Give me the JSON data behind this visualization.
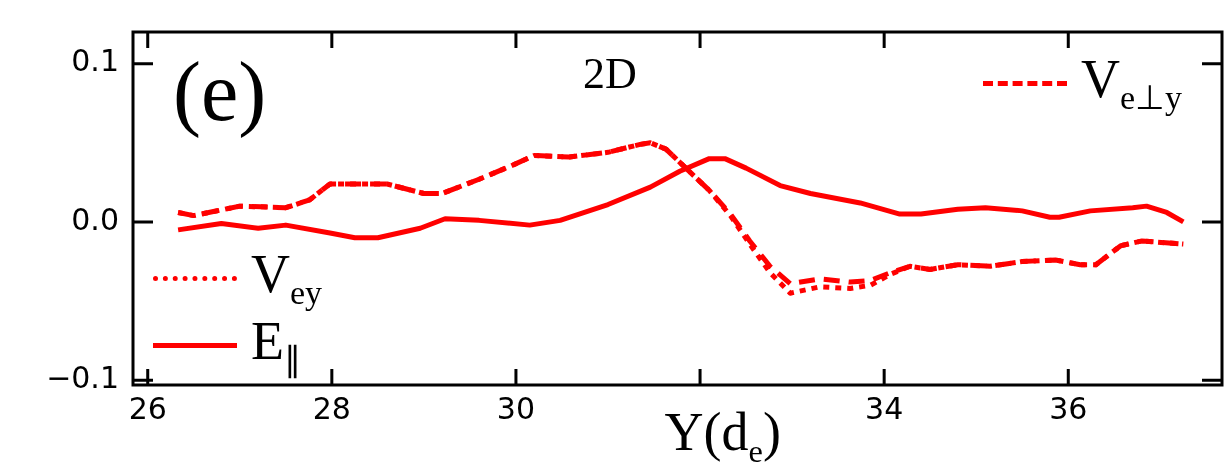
{
  "chart_data": {
    "type": "line",
    "xlabel": "Y(d$_{e}$)",
    "annotations": [
      "(e)",
      "2D"
    ],
    "xlim": [
      25.84,
      37.67
    ],
    "xticks": [
      26,
      28,
      30,
      {
        "value": 32,
        "label": null
      },
      34,
      36
    ],
    "ylim": [
      -0.103,
      0.12
    ],
    "yticks": [
      0.1,
      {
        "value": 0,
        "label": "0.0"
      },
      -0.1
    ],
    "legend": "bottom left",
    "marker": "none",
    "grid": false,
    "series": [
      {
        "name": "V$_{e⊥y}$",
        "color": "#ff0000",
        "line_style": "dashed",
        "x": [
          26.33,
          26.5,
          27.0,
          27.5,
          27.76,
          27.98,
          28.3,
          28.6,
          29.0,
          29.2,
          29.6,
          29.93,
          30.2,
          30.58,
          31.0,
          31.35,
          31.46,
          31.63,
          31.9,
          32.1,
          32.33,
          32.54,
          32.76,
          32.98,
          33.3,
          33.63,
          33.85,
          34.07,
          34.28,
          34.5,
          34.8,
          35.15,
          35.5,
          35.86,
          36.13,
          36.3,
          36.57,
          36.8,
          37.25
        ],
        "values": [
          0.006,
          0.004,
          0.01,
          0.009,
          0.014,
          0.024,
          0.024,
          0.024,
          0.018,
          0.018,
          0.027,
          0.035,
          0.042,
          0.041,
          0.044,
          0.049,
          0.05,
          0.046,
          0.031,
          0.02,
          0.005,
          -0.012,
          -0.028,
          -0.039,
          -0.036,
          -0.038,
          -0.037,
          -0.032,
          -0.028,
          -0.03,
          -0.027,
          -0.028,
          -0.025,
          -0.024,
          -0.027,
          -0.027,
          -0.015,
          -0.012,
          -0.014
        ]
      },
      {
        "name": "V$_{ey}$",
        "color": "#ff0000",
        "line_style": "dotted",
        "x": [
          26.33,
          26.5,
          27.0,
          27.5,
          27.76,
          27.98,
          28.3,
          28.6,
          29.0,
          29.2,
          29.6,
          29.93,
          30.2,
          30.58,
          31.0,
          31.35,
          31.46,
          31.63,
          31.9,
          32.1,
          32.33,
          32.54,
          32.76,
          32.98,
          33.3,
          33.63,
          33.85,
          34.07,
          34.28,
          34.5,
          34.8,
          35.15,
          35.5,
          35.86,
          36.13,
          36.3,
          36.57,
          36.8,
          37.25
        ],
        "values": [
          0.006,
          0.004,
          0.01,
          0.009,
          0.014,
          0.024,
          0.024,
          0.024,
          0.018,
          0.018,
          0.027,
          0.035,
          0.042,
          0.041,
          0.044,
          0.049,
          0.05,
          0.046,
          0.031,
          0.02,
          0.004,
          -0.014,
          -0.032,
          -0.045,
          -0.041,
          -0.042,
          -0.04,
          -0.033,
          -0.028,
          -0.03,
          -0.027,
          -0.028,
          -0.025,
          -0.024,
          -0.027,
          -0.027,
          -0.015,
          -0.012,
          -0.014
        ]
      },
      {
        "name": "E$_{∥}$",
        "color": "#ff0000",
        "line_style": "solid",
        "x": [
          26.33,
          26.8,
          27.2,
          27.5,
          27.98,
          28.25,
          28.5,
          28.96,
          29.23,
          29.6,
          30.15,
          30.48,
          31.0,
          31.46,
          31.78,
          32.1,
          32.27,
          32.5,
          32.87,
          33.2,
          33.74,
          34.17,
          34.4,
          34.8,
          35.1,
          35.5,
          35.8,
          35.9,
          36.24,
          36.7,
          36.85,
          37.07,
          37.25
        ],
        "values": [
          -0.005,
          -0.001,
          -0.004,
          -0.002,
          -0.007,
          -0.01,
          -0.01,
          -0.004,
          0.002,
          0.001,
          -0.002,
          0.001,
          0.011,
          0.022,
          0.032,
          0.04,
          0.04,
          0.034,
          0.023,
          0.018,
          0.012,
          0.005,
          0.005,
          0.008,
          0.009,
          0.007,
          0.003,
          0.003,
          0.007,
          0.009,
          0.01,
          0.006,
          0
        ]
      }
    ]
  }
}
